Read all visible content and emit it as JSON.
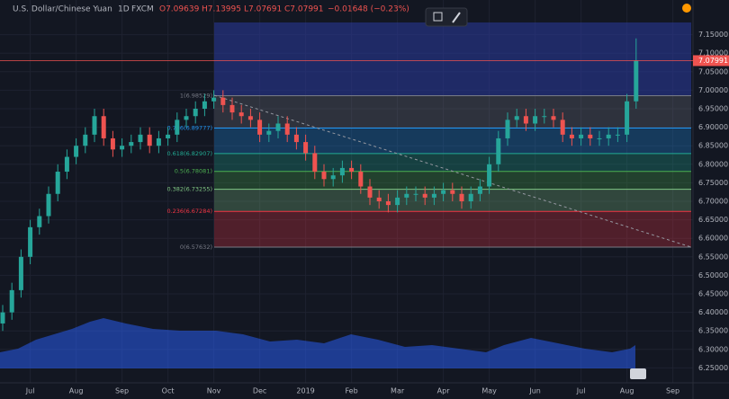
{
  "header": {
    "symbol": "U.S. Dollar/Chinese Yuan",
    "interval": "1D",
    "source": "FXCM",
    "ohlc": [
      "O7.09639",
      "H7.13995",
      "L7.07691",
      "C7.07991"
    ],
    "change": "−0.01648 (−0.23%)"
  },
  "chart_data": {
    "type": "candlestick",
    "categories": [
      null,
      null,
      null,
      "Jul",
      null,
      null,
      null,
      null,
      "Aug",
      null,
      null,
      null,
      null,
      "Sep",
      null,
      null,
      null,
      null,
      "Oct",
      null,
      null,
      null,
      null,
      "Nov",
      null,
      null,
      null,
      null,
      "Dec",
      null,
      null,
      null,
      null,
      "2019",
      null,
      null,
      null,
      null,
      "Feb",
      null,
      null,
      null,
      null,
      "Mar",
      null,
      null,
      null,
      null,
      "Apr",
      null,
      null,
      null,
      null,
      "May",
      null,
      null,
      null,
      null,
      "Jun",
      null,
      null,
      null,
      null,
      "Jul",
      null,
      null,
      null,
      null,
      "Aug",
      null,
      null,
      null,
      null,
      "Sep"
    ],
    "open": [
      6.37,
      6.4,
      6.46,
      6.55,
      6.63,
      6.66,
      6.72,
      6.78,
      6.82,
      6.85,
      6.88,
      6.93,
      6.87,
      6.84,
      6.85,
      6.86,
      6.88,
      6.85,
      6.87,
      6.88,
      6.92,
      6.93,
      6.95,
      6.97,
      6.98,
      6.96,
      6.94,
      6.93,
      6.92,
      6.88,
      6.89,
      6.91,
      6.88,
      6.86,
      6.83,
      6.78,
      6.76,
      6.77,
      6.79,
      6.78,
      6.74,
      6.71,
      6.7,
      6.69,
      6.71,
      6.72,
      6.72,
      6.71,
      6.72,
      6.73,
      6.72,
      6.7,
      6.72,
      6.74,
      6.8,
      6.87,
      6.92,
      6.93,
      6.91,
      6.93,
      6.93,
      6.92,
      6.88,
      6.87,
      6.88,
      6.87,
      6.87,
      6.88,
      6.88,
      6.97,
      null,
      null,
      null,
      null
    ],
    "high": [
      6.42,
      6.48,
      6.57,
      6.65,
      6.68,
      6.74,
      6.8,
      6.84,
      6.87,
      6.9,
      6.95,
      6.95,
      6.89,
      6.87,
      6.88,
      6.9,
      6.9,
      6.89,
      6.9,
      6.94,
      6.95,
      6.97,
      6.99,
      7.0,
      7.0,
      6.98,
      6.96,
      6.95,
      6.94,
      6.91,
      6.93,
      6.93,
      6.9,
      6.88,
      6.85,
      6.8,
      6.79,
      6.81,
      6.81,
      6.8,
      6.76,
      6.73,
      6.72,
      6.73,
      6.74,
      6.74,
      6.74,
      6.74,
      6.75,
      6.75,
      6.74,
      6.74,
      6.76,
      6.82,
      6.89,
      6.94,
      6.95,
      6.95,
      6.95,
      6.95,
      6.95,
      6.94,
      6.9,
      6.9,
      6.9,
      6.89,
      6.9,
      6.9,
      6.99,
      7.14,
      null,
      null,
      null,
      null
    ],
    "low": [
      6.35,
      6.38,
      6.44,
      6.53,
      6.61,
      6.64,
      6.7,
      6.76,
      6.8,
      6.83,
      6.86,
      6.85,
      6.82,
      6.82,
      6.83,
      6.84,
      6.83,
      6.83,
      6.85,
      6.86,
      6.9,
      6.91,
      6.93,
      6.95,
      6.94,
      6.92,
      6.91,
      6.9,
      6.86,
      6.86,
      6.87,
      6.86,
      6.84,
      6.81,
      6.76,
      6.74,
      6.74,
      6.75,
      6.76,
      6.72,
      6.69,
      6.68,
      6.67,
      6.67,
      6.69,
      6.7,
      6.69,
      6.69,
      6.7,
      6.7,
      6.68,
      6.68,
      6.7,
      6.72,
      6.78,
      6.85,
      6.9,
      6.89,
      6.89,
      6.91,
      6.9,
      6.86,
      6.85,
      6.85,
      6.85,
      6.85,
      6.85,
      6.86,
      6.86,
      6.95,
      null,
      null,
      null,
      null
    ],
    "close": [
      6.4,
      6.46,
      6.55,
      6.63,
      6.66,
      6.72,
      6.78,
      6.82,
      6.85,
      6.88,
      6.93,
      6.87,
      6.84,
      6.85,
      6.86,
      6.88,
      6.85,
      6.87,
      6.88,
      6.92,
      6.93,
      6.95,
      6.97,
      6.98,
      6.96,
      6.94,
      6.93,
      6.92,
      6.88,
      6.89,
      6.91,
      6.88,
      6.86,
      6.83,
      6.78,
      6.76,
      6.77,
      6.79,
      6.78,
      6.74,
      6.71,
      6.7,
      6.69,
      6.71,
      6.72,
      6.72,
      6.71,
      6.72,
      6.73,
      6.72,
      6.7,
      6.72,
      6.74,
      6.8,
      6.87,
      6.92,
      6.93,
      6.91,
      6.93,
      6.93,
      6.92,
      6.88,
      6.87,
      6.88,
      6.87,
      6.87,
      6.88,
      6.88,
      6.97,
      7.08,
      null,
      null,
      null,
      null
    ],
    "up_color": "#26a69a",
    "down_color": "#ef5350",
    "ylim": [
      6.2,
      7.2
    ],
    "yticks": [
      {
        "value": 6.25,
        "label": "6.25000"
      },
      {
        "value": 6.3,
        "label": "6.30000"
      },
      {
        "value": 6.35,
        "label": "6.35000"
      },
      {
        "value": 6.4,
        "label": "6.40000"
      },
      {
        "value": 6.45,
        "label": "6.45000"
      },
      {
        "value": 6.5,
        "label": "6.50000"
      },
      {
        "value": 6.55,
        "label": "6.55000"
      },
      {
        "value": 6.6,
        "label": "6.60000"
      },
      {
        "value": 6.65,
        "label": "6.65000"
      },
      {
        "value": 6.7,
        "label": "6.70000"
      },
      {
        "value": 6.75,
        "label": "6.75000"
      },
      {
        "value": 6.8,
        "label": "6.80000"
      },
      {
        "value": 6.85,
        "label": "6.85000"
      },
      {
        "value": 6.9,
        "label": "6.90000"
      },
      {
        "value": 6.95,
        "label": "6.95000"
      },
      {
        "value": 7.0,
        "label": "7.00000"
      },
      {
        "value": 7.05,
        "label": "7.05000"
      },
      {
        "value": 7.1,
        "label": "7.10000"
      },
      {
        "value": 7.15,
        "label": "7.15000"
      }
    ],
    "grid": true,
    "last_price": 7.07991,
    "last_price_color": "#ef5350",
    "fib_levels": [
      {
        "value": 6.98529,
        "label": "1(6.98529)",
        "color": "#787b86"
      },
      {
        "value": 6.89777,
        "label": "0.786(6.89777)",
        "color": "#2196f3"
      },
      {
        "value": 6.82907,
        "label": "0.618(6.82907)",
        "color": "#22ab94"
      },
      {
        "value": 6.78081,
        "label": "0.5(6.78081)",
        "color": "#4caf50"
      },
      {
        "value": 6.73255,
        "label": "0.382(6.73255)",
        "color": "#81c784"
      },
      {
        "value": 6.67284,
        "label": "0.236(6.67284)",
        "color": "#f23645"
      },
      {
        "value": 6.57632,
        "label": "0(6.57632)",
        "color": "#787b86"
      }
    ]
  }
}
